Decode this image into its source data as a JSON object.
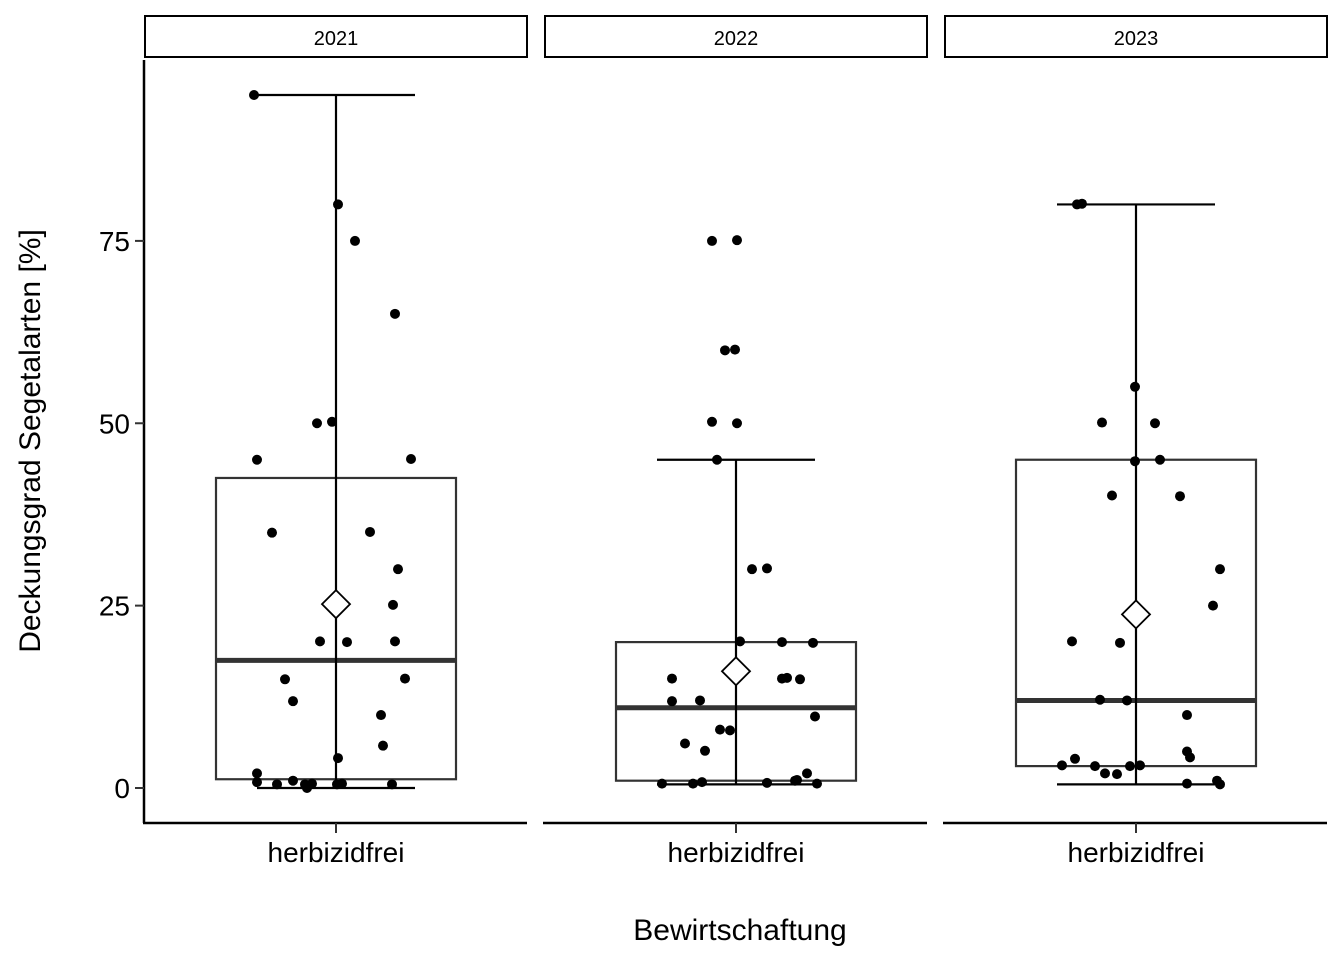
{
  "chart_data": {
    "type": "box",
    "facet_variable": "year",
    "facets": [
      {
        "strip_label": "2021",
        "category": "herbizidfrei",
        "box": {
          "min": 0,
          "q1": 1.2,
          "median": 17.5,
          "q3": 42.5,
          "max": 95,
          "mean": 25.2
        },
        "points": [
          {
            "x": -0.82,
            "y": 95
          },
          {
            "x": 0.02,
            "y": 80
          },
          {
            "x": 0.19,
            "y": 75
          },
          {
            "x": 0.59,
            "y": 65
          },
          {
            "x": -0.19,
            "y": 50
          },
          {
            "x": -0.04,
            "y": 50.2
          },
          {
            "x": -0.79,
            "y": 45
          },
          {
            "x": 0.75,
            "y": 45.1
          },
          {
            "x": -0.64,
            "y": 35
          },
          {
            "x": 0.34,
            "y": 35.1
          },
          {
            "x": 0.62,
            "y": 30
          },
          {
            "x": 0.57,
            "y": 25.1
          },
          {
            "x": -0.16,
            "y": 20.1
          },
          {
            "x": 0.11,
            "y": 20
          },
          {
            "x": 0.59,
            "y": 20.1
          },
          {
            "x": -0.51,
            "y": 14.9
          },
          {
            "x": 0.69,
            "y": 15
          },
          {
            "x": -0.43,
            "y": 11.9
          },
          {
            "x": 0.45,
            "y": 10
          },
          {
            "x": 0.47,
            "y": 5.8
          },
          {
            "x": 0.02,
            "y": 4.1
          },
          {
            "x": -0.79,
            "y": 2
          },
          {
            "x": -0.79,
            "y": 0.8
          },
          {
            "x": -0.59,
            "y": 0.5
          },
          {
            "x": -0.43,
            "y": 1
          },
          {
            "x": -0.31,
            "y": 0.5
          },
          {
            "x": -0.29,
            "y": 0
          },
          {
            "x": -0.24,
            "y": 0.6
          },
          {
            "x": 0.01,
            "y": 0.5
          },
          {
            "x": 0.06,
            "y": 0.6
          },
          {
            "x": 0.56,
            "y": 0.5
          }
        ]
      },
      {
        "strip_label": "2022",
        "category": "herbizidfrei",
        "box": {
          "min": 0.5,
          "q1": 1,
          "median": 11,
          "q3": 20,
          "max": 45,
          "mean": 16
        },
        "points": [
          {
            "x": -0.24,
            "y": 75
          },
          {
            "x": 0.01,
            "y": 75.1
          },
          {
            "x": -0.11,
            "y": 60
          },
          {
            "x": -0.01,
            "y": 60.1
          },
          {
            "x": -0.24,
            "y": 50.2
          },
          {
            "x": 0.01,
            "y": 50
          },
          {
            "x": -0.19,
            "y": 45
          },
          {
            "x": 0.16,
            "y": 30
          },
          {
            "x": 0.31,
            "y": 30.1
          },
          {
            "x": 0.04,
            "y": 20.1
          },
          {
            "x": 0.46,
            "y": 20
          },
          {
            "x": 0.77,
            "y": 19.9
          },
          {
            "x": -0.64,
            "y": 15
          },
          {
            "x": 0.46,
            "y": 15
          },
          {
            "x": 0.51,
            "y": 15.1
          },
          {
            "x": 0.64,
            "y": 14.9
          },
          {
            "x": -0.64,
            "y": 11.9
          },
          {
            "x": -0.36,
            "y": 12
          },
          {
            "x": 0.79,
            "y": 9.8
          },
          {
            "x": -0.16,
            "y": 8
          },
          {
            "x": -0.06,
            "y": 7.9
          },
          {
            "x": -0.51,
            "y": 6.1
          },
          {
            "x": -0.31,
            "y": 5.1
          },
          {
            "x": 0.71,
            "y": 2
          },
          {
            "x": 0.61,
            "y": 1.1
          },
          {
            "x": 0.59,
            "y": 1
          },
          {
            "x": -0.74,
            "y": 0.6
          },
          {
            "x": -0.43,
            "y": 0.6
          },
          {
            "x": -0.34,
            "y": 0.8
          },
          {
            "x": 0.31,
            "y": 0.7
          },
          {
            "x": 0.81,
            "y": 0.6
          }
        ]
      },
      {
        "strip_label": "2023",
        "category": "herbizidfrei",
        "box": {
          "min": 0.5,
          "q1": 3,
          "median": 12,
          "q3": 45,
          "max": 80,
          "mean": 23.8
        },
        "points": [
          {
            "x": -0.59,
            "y": 80
          },
          {
            "x": -0.54,
            "y": 80.1
          },
          {
            "x": -0.01,
            "y": 55
          },
          {
            "x": -0.34,
            "y": 50.1
          },
          {
            "x": 0.19,
            "y": 50
          },
          {
            "x": -0.01,
            "y": 44.8
          },
          {
            "x": 0.24,
            "y": 45
          },
          {
            "x": -0.24,
            "y": 40.1
          },
          {
            "x": 0.44,
            "y": 40
          },
          {
            "x": 0.84,
            "y": 30
          },
          {
            "x": 0.77,
            "y": 25
          },
          {
            "x": -0.64,
            "y": 20.1
          },
          {
            "x": -0.16,
            "y": 19.9
          },
          {
            "x": -0.36,
            "y": 12.1
          },
          {
            "x": -0.09,
            "y": 12
          },
          {
            "x": 0.51,
            "y": 10
          },
          {
            "x": 0.51,
            "y": 5
          },
          {
            "x": 0.54,
            "y": 4.2
          },
          {
            "x": -0.61,
            "y": 4
          },
          {
            "x": -0.74,
            "y": 3.1
          },
          {
            "x": -0.41,
            "y": 3
          },
          {
            "x": -0.31,
            "y": 2
          },
          {
            "x": -0.19,
            "y": 1.9
          },
          {
            "x": -0.06,
            "y": 3
          },
          {
            "x": 0.04,
            "y": 3.1
          },
          {
            "x": 0.51,
            "y": 0.6
          },
          {
            "x": 0.81,
            "y": 1
          },
          {
            "x": 0.84,
            "y": 0.5
          }
        ]
      }
    ],
    "ylabel": "Deckungsgrad Segetalarten [%]",
    "xlabel": "Bewirtschaftung",
    "yticks": [
      0,
      25,
      50,
      75
    ],
    "ylim": [
      -4.8,
      99.8
    ],
    "grid": false,
    "colors": {
      "points": "#000000",
      "box_line": "#333333",
      "whisker": "#000000",
      "strip_fill": "#ffffff",
      "strip_border": "#000000"
    }
  }
}
